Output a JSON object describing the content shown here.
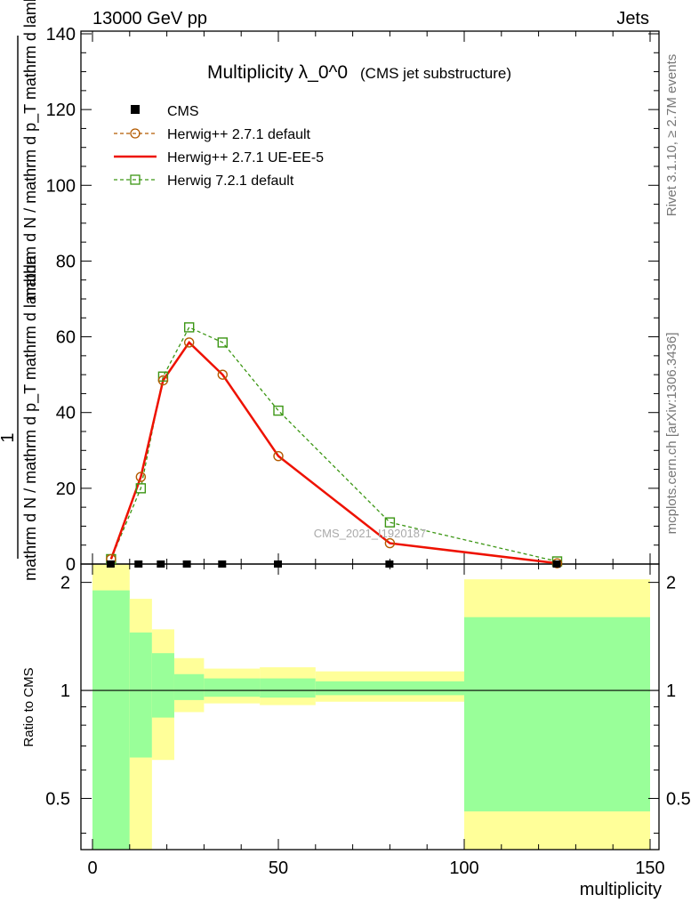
{
  "header": {
    "left": "13000 GeV pp",
    "right": "Jets"
  },
  "side_labels": {
    "rivet": "Rivet 3.1.10, ≥ 2.7M events",
    "mcplots": "mcplots.cern.ch [arXiv:1306.3436]"
  },
  "watermark": "CMS_2021_I1920187",
  "ylabel_main": {
    "one": "1",
    "num": "mathrm d N / mathrm d p_T mathrm d lambda",
    "den": "mathrm d N / mathrm d p_T mathrm d lambda"
  },
  "colors": {
    "cms": "#000000",
    "herwig_default": "#b35a00",
    "herwig_ueee5": "#ee1100",
    "herwig7": "#3c9614",
    "band_inner": "#99ff99",
    "band_outer": "#ffff99"
  },
  "chart_data": [
    {
      "type": "line",
      "title": "Multiplicity λ_0^0",
      "subtitle": "(CMS jet substructure)",
      "xlabel": "multiplicity",
      "ylabel": "1 / N dN/dp_T dλ",
      "xlim": [
        -3,
        150
      ],
      "ylim": [
        0,
        140
      ],
      "yticks": [
        0,
        20,
        40,
        60,
        80,
        100,
        120,
        140
      ],
      "legend_position": "top-left",
      "legend": [
        "CMS",
        "Herwig++ 2.7.1 default",
        "Herwig++ 2.7.1 UE-EE-5",
        "Herwig 7.2.1 default"
      ],
      "series": [
        {
          "name": "CMS",
          "style": "markers",
          "x": [
            5,
            12.5,
            18.5,
            25.5,
            35,
            50,
            80,
            125
          ],
          "y": [
            0,
            0,
            0,
            0,
            0,
            0,
            0,
            0
          ]
        },
        {
          "name": "Herwig++ 2.7.1 default",
          "style": "dashed-circle",
          "x": [
            5,
            13,
            19,
            26,
            35,
            50,
            80,
            125
          ],
          "y": [
            1.3,
            23,
            48.5,
            58.5,
            50,
            28.5,
            5.5,
            0.2
          ]
        },
        {
          "name": "Herwig++ 2.7.1 UE-EE-5",
          "style": "solid",
          "x": [
            5,
            13,
            19,
            26,
            35,
            50,
            80,
            125
          ],
          "y": [
            1.3,
            23,
            48.5,
            58.5,
            50,
            28.5,
            5.5,
            0.2
          ]
        },
        {
          "name": "Herwig 7.2.1 default",
          "style": "dashed-square",
          "x": [
            5,
            13,
            19,
            26,
            35,
            50,
            80,
            125
          ],
          "y": [
            1.3,
            20,
            49.5,
            62.5,
            58.5,
            40.5,
            11,
            0.7
          ]
        }
      ]
    },
    {
      "type": "area",
      "title": "",
      "xlabel": "multiplicity",
      "ylabel": "Ratio to CMS",
      "xlim": [
        -3,
        150
      ],
      "ylim": [
        0.36,
        2.25
      ],
      "yscale": "log",
      "yticks": [
        0.5,
        1,
        2
      ],
      "xticks": [
        0,
        50,
        100,
        150
      ],
      "bins": [
        {
          "x": [
            0,
            10
          ],
          "inner": [
            0.3,
            1.9
          ],
          "outer": [
            0.3,
            2.3
          ]
        },
        {
          "x": [
            10,
            16
          ],
          "inner": [
            0.65,
            1.45
          ],
          "outer": [
            0.3,
            1.8
          ]
        },
        {
          "x": [
            16,
            22
          ],
          "inner": [
            0.84,
            1.27
          ],
          "outer": [
            0.64,
            1.48
          ]
        },
        {
          "x": [
            22,
            30
          ],
          "inner": [
            0.94,
            1.11
          ],
          "outer": [
            0.87,
            1.23
          ]
        },
        {
          "x": [
            30,
            45
          ],
          "inner": [
            0.96,
            1.08
          ],
          "outer": [
            0.92,
            1.15
          ]
        },
        {
          "x": [
            45,
            60
          ],
          "inner": [
            0.955,
            1.08
          ],
          "outer": [
            0.91,
            1.16
          ]
        },
        {
          "x": [
            60,
            100
          ],
          "inner": [
            0.97,
            1.06
          ],
          "outer": [
            0.93,
            1.13
          ]
        },
        {
          "x": [
            100,
            150
          ],
          "inner": [
            0.46,
            1.6
          ],
          "outer": [
            0.36,
            2.04
          ]
        }
      ],
      "reference_line": 1
    }
  ]
}
